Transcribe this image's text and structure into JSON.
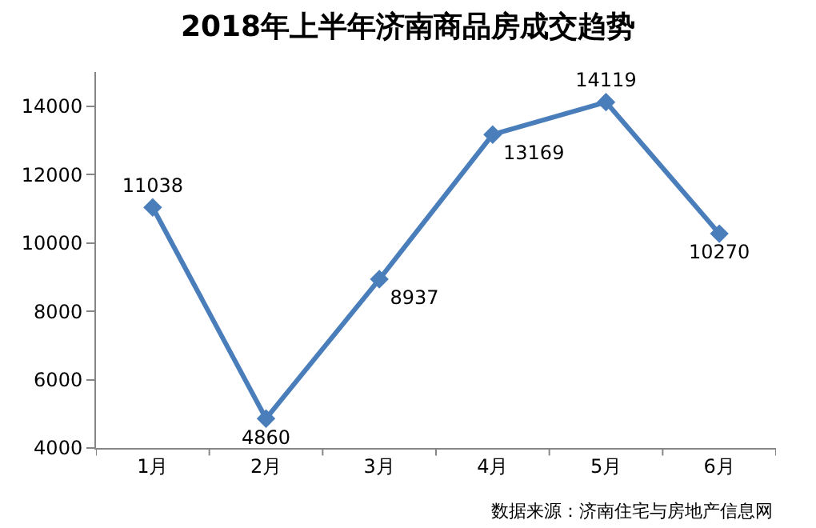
{
  "chart_data": {
    "type": "line",
    "title": "2018年上半年济南商品房成交趋势",
    "categories": [
      "1月",
      "2月",
      "3月",
      "4月",
      "5月",
      "6月"
    ],
    "series": [
      {
        "color": "#4a7ebb",
        "values": [
          11038,
          4860,
          8937,
          13169,
          14119,
          10270
        ]
      }
    ],
    "ylim": [
      4000,
      15000
    ],
    "yticks": [
      4000,
      6000,
      8000,
      10000,
      12000,
      14000
    ],
    "grid": false,
    "legend": false,
    "marker": "diamond",
    "line_style": "solid",
    "data_labels": true,
    "annotations": [
      "数据来源：济南住宅与房地产信息网"
    ]
  }
}
